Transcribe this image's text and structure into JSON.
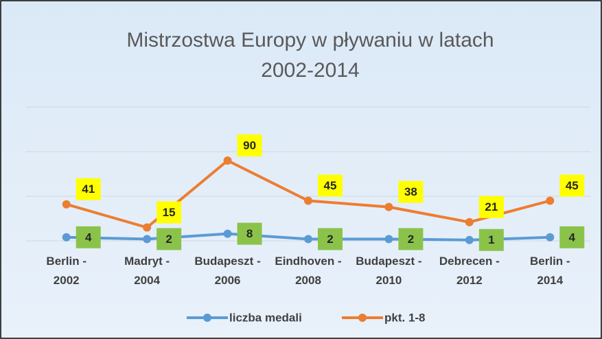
{
  "chart_data": {
    "type": "line",
    "title": "Mistrzostwa Europy w pływaniu w latach 2002-2014",
    "categories": [
      "Berlin - 2002",
      "Madryt - 2004",
      "Budapeszt - 2006",
      "Eindhoven - 2008",
      "Budapeszt - 2010",
      "Debrecen - 2012",
      "Berlin - 2014"
    ],
    "series": [
      {
        "name": "liczba medali",
        "color": "#5b9bd5",
        "values": [
          4,
          2,
          8,
          2,
          2,
          1,
          4
        ]
      },
      {
        "name": "pkt. 1-8",
        "color": "#ed7d31",
        "values": [
          41,
          15,
          90,
          45,
          38,
          21,
          45
        ]
      }
    ],
    "ylim": [
      0,
      150
    ],
    "yticks": [
      0,
      50,
      100,
      150
    ],
    "grid": true,
    "legend": "bottom"
  }
}
